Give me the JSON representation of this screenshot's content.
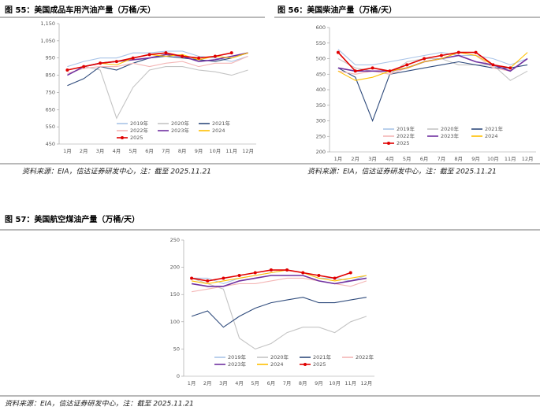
{
  "chart_data": [
    {
      "type": "line",
      "title": "图 55：美国成品车用汽油产量（万桶/天）",
      "source": "资料来源：EIA，信达证券研发中心，注：截至 2025.11.21",
      "categories": [
        "1月",
        "2月",
        "3月",
        "4月",
        "5月",
        "6月",
        "7月",
        "8月",
        "9月",
        "10月",
        "11月",
        "12月"
      ],
      "ylim": [
        450,
        1150
      ],
      "yticks": [
        450,
        550,
        650,
        750,
        850,
        950,
        {
          "value": 1050,
          "label": "1,050"
        },
        {
          "value": 1150,
          "label": "1,150"
        }
      ],
      "series": [
        {
          "name": "2019年",
          "color": "#a9c4e8",
          "values": [
            900,
            930,
            950,
            950,
            980,
            980,
            990,
            990,
            960,
            950,
            930,
            960
          ]
        },
        {
          "name": "2020年",
          "color": "#c4c4c4",
          "values": [
            880,
            900,
            880,
            600,
            780,
            880,
            900,
            900,
            880,
            870,
            850,
            880
          ]
        },
        {
          "name": "2021年",
          "color": "#2f4b7c",
          "values": [
            790,
            830,
            900,
            880,
            920,
            950,
            960,
            950,
            940,
            930,
            950,
            980
          ]
        },
        {
          "name": "2022年",
          "color": "#f4b6b6",
          "values": [
            860,
            890,
            900,
            900,
            920,
            900,
            920,
            930,
            900,
            920,
            920,
            960
          ]
        },
        {
          "name": "2023年",
          "color": "#7030a0",
          "values": [
            850,
            900,
            920,
            930,
            940,
            950,
            970,
            960,
            930,
            940,
            960,
            980
          ]
        },
        {
          "name": "2024",
          "color": "#ffc000",
          "values": [
            880,
            900,
            920,
            910,
            950,
            970,
            960,
            970,
            940,
            960,
            950,
            980
          ]
        },
        {
          "name": "2025",
          "color": "#e00000",
          "values": [
            880,
            900,
            920,
            930,
            950,
            970,
            980,
            960,
            950,
            960,
            980,
            null
          ]
        }
      ]
    },
    {
      "type": "line",
      "title": "图 56：美国柴油产量（万桶/天）",
      "source": "资料来源：EIA，信达证券研发中心，注：截至 2025.11.21",
      "categories": [
        "1月",
        "2月",
        "3月",
        "4月",
        "5月",
        "6月",
        "7月",
        "8月",
        "9月",
        "10月",
        "11月",
        "12月"
      ],
      "ylim": [
        200,
        600
      ],
      "yticks": [
        200,
        250,
        300,
        350,
        400,
        450,
        500,
        550,
        600
      ],
      "series": [
        {
          "name": "2019年",
          "color": "#a9c4e8",
          "values": [
            530,
            480,
            480,
            490,
            500,
            510,
            520,
            510,
            510,
            500,
            480,
            500
          ]
        },
        {
          "name": "2020年",
          "color": "#c4c4c4",
          "values": [
            500,
            470,
            460,
            450,
            490,
            500,
            500,
            480,
            480,
            480,
            430,
            460
          ]
        },
        {
          "name": "2021年",
          "color": "#2f4b7c",
          "values": [
            470,
            440,
            300,
            450,
            460,
            470,
            480,
            490,
            480,
            470,
            470,
            480
          ]
        },
        {
          "name": "2022年",
          "color": "#f4b6b6",
          "values": [
            460,
            450,
            460,
            450,
            470,
            490,
            500,
            520,
            510,
            470,
            460,
            500
          ]
        },
        {
          "name": "2023年",
          "color": "#7030a0",
          "values": [
            470,
            460,
            460,
            460,
            470,
            490,
            500,
            510,
            490,
            480,
            460,
            500
          ]
        },
        {
          "name": "2024",
          "color": "#ffc000",
          "values": [
            460,
            430,
            440,
            460,
            470,
            490,
            500,
            520,
            510,
            480,
            470,
            520
          ]
        },
        {
          "name": "2025",
          "color": "#e00000",
          "values": [
            520,
            460,
            470,
            460,
            480,
            500,
            510,
            520,
            520,
            480,
            470,
            null
          ]
        }
      ]
    },
    {
      "type": "line",
      "title": "图 57：美国航空煤油产量（万桶/天）",
      "source": "资料来源：EIA，信达证券研发中心，注：截至 2025.11.21",
      "categories": [
        "1月",
        "2月",
        "3月",
        "4月",
        "5月",
        "6月",
        "7月",
        "8月",
        "9月",
        "10月",
        "11月",
        "12月"
      ],
      "ylim": [
        0,
        250
      ],
      "yticks": [
        0,
        50,
        100,
        150,
        200,
        250
      ],
      "series": [
        {
          "name": "2019年",
          "color": "#a9c4e8",
          "values": [
            180,
            180,
            170,
            180,
            185,
            190,
            195,
            190,
            180,
            180,
            175,
            185
          ]
        },
        {
          "name": "2020年",
          "color": "#c4c4c4",
          "values": [
            180,
            170,
            160,
            70,
            50,
            60,
            80,
            90,
            90,
            80,
            100,
            110
          ]
        },
        {
          "name": "2021年",
          "color": "#2f4b7c",
          "values": [
            110,
            120,
            90,
            110,
            125,
            135,
            140,
            145,
            135,
            135,
            140,
            145
          ]
        },
        {
          "name": "2022年",
          "color": "#f4b6b6",
          "values": [
            155,
            160,
            165,
            170,
            170,
            175,
            180,
            180,
            175,
            170,
            165,
            175
          ]
        },
        {
          "name": "2023年",
          "color": "#7030a0",
          "values": [
            170,
            165,
            165,
            175,
            180,
            185,
            185,
            185,
            175,
            170,
            175,
            180
          ]
        },
        {
          "name": "2024",
          "color": "#ffc000",
          "values": [
            175,
            170,
            175,
            180,
            185,
            190,
            195,
            190,
            180,
            175,
            180,
            185
          ]
        },
        {
          "name": "2025",
          "color": "#e00000",
          "values": [
            180,
            175,
            180,
            185,
            190,
            195,
            195,
            190,
            185,
            180,
            190,
            null
          ]
        }
      ]
    }
  ]
}
